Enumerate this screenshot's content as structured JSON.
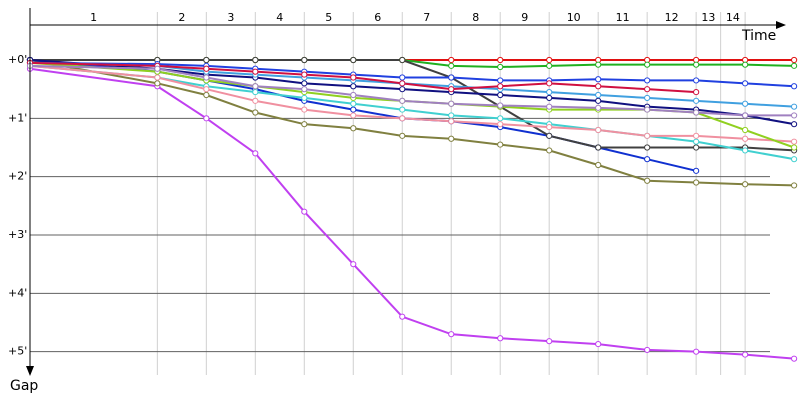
{
  "chart_data": {
    "type": "line",
    "x_title": "Time",
    "y_title": "Gap",
    "laps": [
      "1",
      "2",
      "3",
      "4",
      "5",
      "6",
      "7",
      "8",
      "9",
      "10",
      "11",
      "12",
      "13",
      "14"
    ],
    "xlim": [
      0,
      15.7
    ],
    "xticks": [
      2.6,
      3.6,
      4.6,
      5.6,
      6.6,
      7.6,
      8.6,
      9.6,
      10.6,
      11.6,
      12.6,
      13.6,
      14.1,
      14.6
    ],
    "ylim": [
      -0.6,
      5.4
    ],
    "yticks": [
      {
        "value": 0,
        "label": "+0'"
      },
      {
        "value": 1,
        "label": "+1'"
      },
      {
        "value": 2,
        "label": "+2'"
      },
      {
        "value": 3,
        "label": "+3'"
      },
      {
        "value": 4,
        "label": "+4'"
      },
      {
        "value": 5,
        "label": "+5'"
      }
    ],
    "y_inverted": true,
    "grid": true,
    "x": [
      0,
      2.6,
      3.6,
      4.6,
      5.6,
      6.6,
      7.6,
      8.6,
      9.6,
      10.6,
      11.6,
      12.6,
      13.6,
      14.6,
      15.6
    ],
    "series": [
      {
        "color": "#e01010",
        "values": [
          0,
          0,
          0,
          0,
          0,
          0,
          0,
          0,
          0,
          0,
          0,
          0,
          0,
          0,
          0
        ]
      },
      {
        "color": "#20b020",
        "values": [
          0,
          0,
          0,
          0,
          0,
          0,
          0,
          0.1,
          0.12,
          0.1,
          0.08,
          0.08,
          0.08,
          0.08,
          0.1
        ]
      },
      {
        "color": "#c040f0",
        "values": [
          0.15,
          0.45,
          1.0,
          1.6,
          2.6,
          3.5,
          4.4,
          4.7,
          4.77,
          4.82,
          4.87,
          4.97,
          5.0,
          5.05,
          5.12
        ]
      },
      {
        "color": "#808040",
        "values": [
          0,
          0.4,
          0.6,
          0.9,
          1.1,
          1.17,
          1.3,
          1.35,
          1.45,
          1.55,
          1.8,
          2.07,
          2.1,
          2.13,
          2.15
        ]
      },
      {
        "color": "#1030d0",
        "values": [
          0,
          0.2,
          0.35,
          0.5,
          0.7,
          0.85,
          1.0,
          1.05,
          1.15,
          1.3,
          1.5,
          1.7,
          1.9,
          null,
          null
        ]
      },
      {
        "color": "#404040",
        "values": [
          0,
          0,
          0,
          0,
          0,
          0,
          0,
          0.3,
          0.8,
          1.3,
          1.5,
          1.5,
          1.5,
          1.5,
          1.55
        ]
      },
      {
        "color": "#101080",
        "values": [
          0,
          0.15,
          0.25,
          0.3,
          0.4,
          0.45,
          0.5,
          0.55,
          0.6,
          0.65,
          0.7,
          0.8,
          0.85,
          0.95,
          1.1
        ]
      },
      {
        "color": "#2040e0",
        "values": [
          0.05,
          0.07,
          0.1,
          0.15,
          0.2,
          0.25,
          0.3,
          0.3,
          0.35,
          0.35,
          0.33,
          0.35,
          0.35,
          0.4,
          0.45
        ]
      },
      {
        "color": "#40a0e0",
        "values": [
          0.05,
          0.1,
          0.2,
          0.25,
          0.3,
          0.35,
          0.4,
          0.45,
          0.5,
          0.55,
          0.6,
          0.65,
          0.7,
          0.75,
          0.8
        ]
      },
      {
        "color": "#40d0d0",
        "values": [
          0.1,
          0.3,
          0.45,
          0.55,
          0.65,
          0.75,
          0.85,
          0.95,
          1.0,
          1.1,
          1.2,
          1.3,
          1.4,
          1.55,
          1.7
        ]
      },
      {
        "color": "#f090a0",
        "values": [
          0.1,
          0.3,
          0.5,
          0.7,
          0.85,
          0.95,
          1.0,
          1.05,
          1.1,
          1.15,
          1.2,
          1.3,
          1.3,
          1.35,
          1.4
        ]
      },
      {
        "color": "#90d020",
        "values": [
          0.05,
          0.2,
          0.35,
          0.45,
          0.55,
          0.65,
          0.7,
          0.75,
          0.8,
          0.85,
          0.85,
          0.85,
          0.9,
          1.2,
          1.5
        ]
      },
      {
        "color": "#d01040",
        "values": [
          0.05,
          0.1,
          0.15,
          0.2,
          0.25,
          0.3,
          0.4,
          0.5,
          0.45,
          0.4,
          0.45,
          0.5,
          0.55,
          null,
          null
        ]
      },
      {
        "color": "#a080c0",
        "values": [
          0.1,
          0.15,
          0.3,
          0.45,
          0.5,
          0.6,
          0.7,
          0.75,
          0.78,
          0.8,
          0.82,
          0.85,
          0.9,
          0.95,
          0.95
        ]
      }
    ]
  }
}
